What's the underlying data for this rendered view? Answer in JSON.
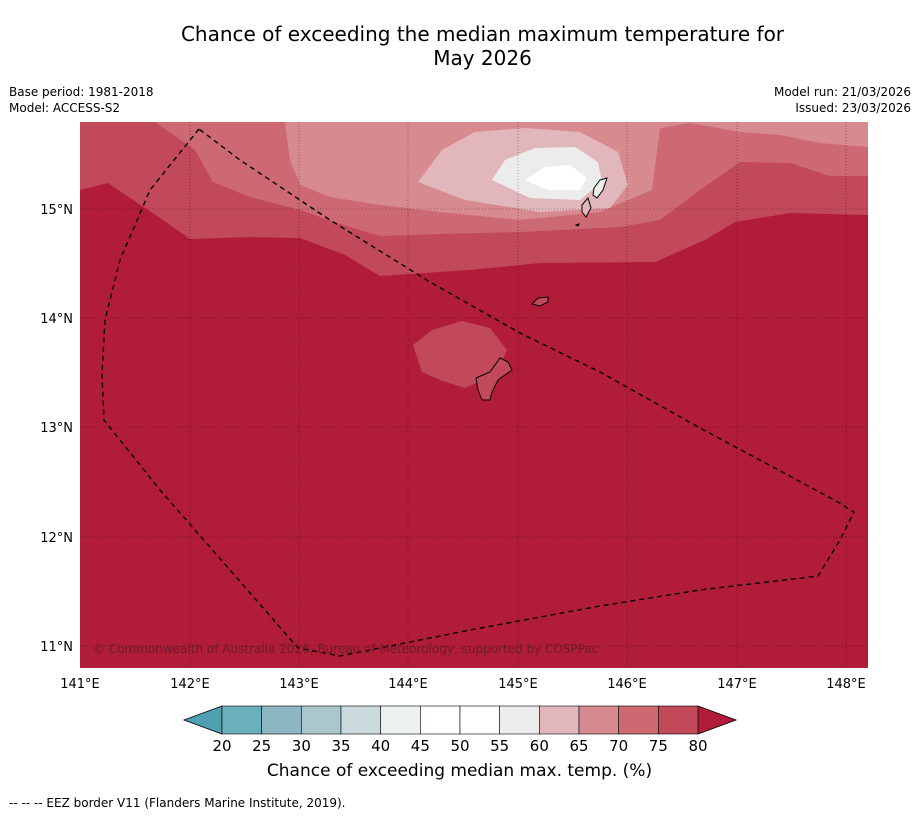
{
  "title_line1": "Chance of exceeding the median maximum temperature for",
  "title_line2": "May 2026",
  "meta": {
    "base_period": "Base period: 1981-2018",
    "model": "Model: ACCESS-S2",
    "model_run": "Model run: 21/03/2026",
    "issued": "Issued: 23/03/2026"
  },
  "map": {
    "lon_ticks": [
      "141°E",
      "142°E",
      "143°E",
      "144°E",
      "145°E",
      "146°E",
      "147°E",
      "148°E"
    ],
    "lat_ticks": [
      "15°N",
      "14°N",
      "13°N",
      "12°N",
      "11°N"
    ],
    "copyright": "© Commonwealth of Australia 2026, Bureau of Meteorology, supported by COSPPac",
    "colors": {
      "c80": "#b11d39",
      "c75": "#c1495a",
      "c70": "#cd6972",
      "c65": "#d88a91",
      "c60": "#e2b7bc",
      "c55": "#ececed",
      "c50": "#ffffff"
    }
  },
  "colorbar": {
    "labels": [
      "20",
      "25",
      "30",
      "35",
      "40",
      "45",
      "50",
      "55",
      "60",
      "65",
      "70",
      "75",
      "80"
    ],
    "colors": [
      "#6aafbc",
      "#8cb6c1",
      "#a9c7cc",
      "#cbdadd",
      "#ebf1f1",
      "#ffffff",
      "#ffffff",
      "#ececed",
      "#e2b7bc",
      "#d88a91",
      "#cd6972",
      "#c1495a"
    ],
    "low_color": "#4ea1b0",
    "high_color": "#b11d39",
    "title": "Chance of exceeding median max. temp. (%)"
  },
  "footnote": "--  --  -- EEZ border V11 (Flanders Marine Institute, 2019)."
}
